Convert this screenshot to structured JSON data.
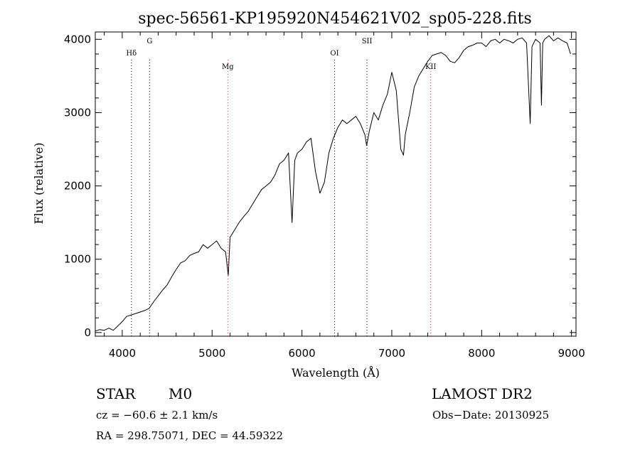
{
  "chart_data": {
    "type": "line",
    "title": "spec-56561-KP195920N454621V02_sp05-228.fits",
    "xlabel": "Wavelength (Å)",
    "ylabel": "Flux (relative)",
    "xlim": [
      3700,
      9050
    ],
    "ylim": [
      -50,
      4100
    ],
    "xticks": [
      4000,
      5000,
      6000,
      7000,
      8000,
      9000
    ],
    "yticks": [
      0,
      1000,
      2000,
      3000,
      4000
    ],
    "grid": false,
    "series": [
      {
        "x": [
          3700,
          3750,
          3800,
          3850,
          3900,
          3950,
          4000,
          4050,
          4100,
          4150,
          4200,
          4250,
          4300,
          4350,
          4400,
          4450,
          4500,
          4550,
          4600,
          4650,
          4700,
          4750,
          4800,
          4850,
          4900,
          4950,
          5000,
          5050,
          5100,
          5150,
          5180,
          5200,
          5250,
          5300,
          5350,
          5400,
          5450,
          5500,
          5550,
          5600,
          5650,
          5700,
          5750,
          5800,
          5850,
          5890,
          5920,
          5950,
          6000,
          6050,
          6100,
          6150,
          6200,
          6250,
          6300,
          6350,
          6400,
          6450,
          6500,
          6550,
          6600,
          6650,
          6700,
          6720,
          6750,
          6800,
          6850,
          6900,
          6950,
          7000,
          7050,
          7100,
          7130,
          7150,
          7200,
          7250,
          7300,
          7350,
          7400,
          7450,
          7500,
          7550,
          7600,
          7650,
          7700,
          7750,
          7800,
          7850,
          7900,
          7950,
          8000,
          8050,
          8100,
          8150,
          8200,
          8250,
          8300,
          8350,
          8400,
          8450,
          8500,
          8540,
          8560,
          8600,
          8650,
          8665,
          8680,
          8700,
          8750,
          8800,
          8850,
          8900,
          8950,
          8990
        ],
        "y": [
          20,
          40,
          30,
          60,
          30,
          90,
          150,
          220,
          240,
          260,
          280,
          300,
          330,
          420,
          500,
          580,
          650,
          760,
          860,
          950,
          980,
          1050,
          1080,
          1100,
          1200,
          1150,
          1200,
          1250,
          1150,
          1100,
          780,
          1300,
          1400,
          1500,
          1580,
          1650,
          1750,
          1850,
          1950,
          2000,
          2050,
          2150,
          2300,
          2350,
          2450,
          1500,
          2350,
          2450,
          2500,
          2600,
          2650,
          2200,
          1900,
          2050,
          2450,
          2650,
          2800,
          2900,
          2850,
          2900,
          2950,
          2850,
          2700,
          2550,
          2750,
          3000,
          2900,
          3100,
          3250,
          3550,
          3300,
          2500,
          2420,
          2700,
          3000,
          3350,
          3500,
          3600,
          3700,
          3780,
          3800,
          3820,
          3780,
          3700,
          3680,
          3750,
          3850,
          3900,
          3920,
          3950,
          3950,
          3900,
          3980,
          4000,
          3950,
          4000,
          3980,
          3950,
          4000,
          4020,
          3950,
          2850,
          3900,
          4000,
          3950,
          3100,
          3950,
          4000,
          4050,
          3980,
          4020,
          3980,
          3950,
          3800
        ],
        "color": "#000000"
      }
    ],
    "lines": [
      {
        "label": "Hδ",
        "x": 4102,
        "color": "#000000"
      },
      {
        "label": "G",
        "x": 4304,
        "color": "#000000"
      },
      {
        "label": "Mg",
        "x": 5175,
        "color": "#d43a3a"
      },
      {
        "label": "OI",
        "x": 6363,
        "color": "#000000"
      },
      {
        "label": "SII",
        "x": 6724,
        "color": "#000000"
      },
      {
        "label": "KII",
        "x": 7433,
        "color": "#d43a3a"
      }
    ]
  },
  "info": {
    "class": "STAR",
    "subclass": "M0",
    "survey": "LAMOST DR2",
    "cz": "cz = −60.6 ± 2.1 km/s",
    "obs_date": "Obs−Date: 20130925",
    "coords": "RA = 298.75071, DEC =  44.59322"
  }
}
